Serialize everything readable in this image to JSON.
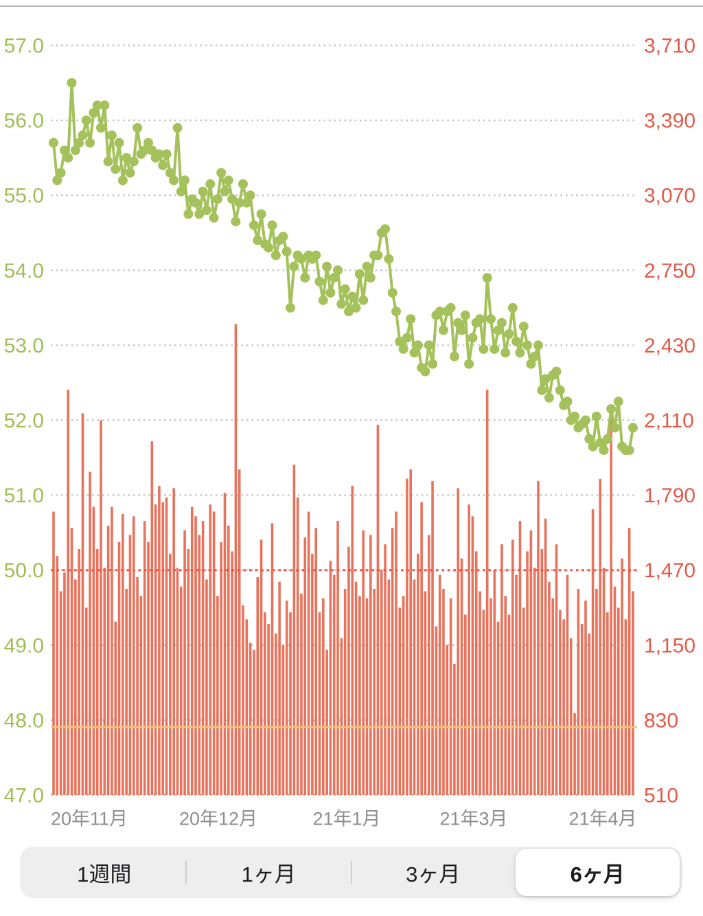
{
  "chart_data": {
    "type": "line+bar",
    "title": "",
    "left_axis": {
      "labels": [
        "57.0",
        "56.0",
        "55.0",
        "54.0",
        "53.0",
        "52.0",
        "51.0",
        "50.0",
        "49.0",
        "48.0",
        "47.0"
      ],
      "min": 47.0,
      "max": 57.0,
      "color": "#a1be56"
    },
    "right_axis": {
      "labels": [
        "3,710",
        "3,390",
        "3,070",
        "2,750",
        "2,430",
        "2,110",
        "1,790",
        "1,470",
        "1,150",
        "830",
        "510"
      ],
      "min": 510,
      "max": 3710,
      "color": "#e25a49"
    },
    "x_axis": {
      "labels": [
        "20年11月",
        "20年12月",
        "21年1月",
        "21年3月",
        "21年4月"
      ],
      "label_centers": [
        130,
        318,
        505,
        690,
        878
      ],
      "color": "#8e8e93"
    },
    "grid": {
      "on": true,
      "color": "#c3c3c5",
      "bottom_line_color": "#b6c87d"
    },
    "legend": "none",
    "reference_lines": [
      {
        "name": "calorie-goal-line",
        "value": 1470,
        "axis": "right",
        "style": "dotted",
        "color": "#f3523d"
      },
      {
        "name": "sub-goal-line",
        "value": 800,
        "axis": "right",
        "style": "solid",
        "color": "#f2c57c"
      }
    ],
    "series": [
      {
        "name": "weight",
        "type": "line",
        "unit": "kg",
        "axis": "left",
        "color": "#a4c15b",
        "values": [
          55.7,
          55.2,
          55.3,
          55.6,
          55.5,
          56.5,
          55.6,
          55.7,
          55.8,
          56.0,
          55.7,
          56.1,
          56.2,
          55.9,
          56.2,
          55.45,
          55.8,
          55.35,
          55.7,
          55.2,
          55.5,
          55.3,
          55.45,
          55.9,
          55.55,
          55.6,
          55.7,
          55.6,
          55.5,
          55.55,
          55.4,
          55.55,
          55.3,
          55.2,
          55.9,
          55.05,
          55.2,
          54.75,
          54.95,
          54.9,
          54.75,
          55.05,
          54.8,
          55.15,
          54.7,
          54.95,
          55.3,
          55.05,
          55.2,
          54.95,
          54.65,
          54.9,
          55.15,
          54.9,
          55.0,
          54.6,
          54.4,
          54.75,
          54.35,
          54.3,
          54.6,
          54.2,
          54.4,
          54.45,
          54.25,
          53.5,
          54.05,
          54.2,
          54.15,
          53.9,
          54.2,
          54.15,
          54.2,
          53.85,
          53.6,
          54.05,
          53.7,
          53.9,
          54.0,
          53.55,
          53.75,
          53.45,
          53.65,
          53.5,
          53.95,
          53.6,
          54.05,
          53.9,
          54.2,
          54.2,
          54.5,
          54.55,
          54.15,
          53.7,
          53.45,
          53.05,
          52.95,
          53.1,
          53.35,
          52.9,
          53.0,
          52.7,
          52.65,
          53.0,
          52.75,
          53.4,
          53.45,
          53.2,
          53.45,
          53.5,
          52.85,
          53.3,
          53.2,
          53.4,
          52.75,
          53.1,
          53.3,
          53.35,
          52.95,
          53.9,
          53.35,
          52.95,
          53.2,
          53.3,
          52.9,
          53.15,
          53.5,
          53.05,
          52.9,
          53.25,
          53.0,
          52.75,
          52.85,
          53.0,
          52.4,
          52.55,
          52.3,
          52.6,
          52.65,
          52.4,
          52.2,
          52.25,
          52.0,
          52.05,
          51.9,
          51.95,
          52.0,
          51.75,
          51.65,
          52.05,
          51.7,
          51.6,
          51.75,
          52.15,
          51.9,
          52.25,
          51.65,
          51.6,
          51.6,
          51.9
        ]
      },
      {
        "name": "calories",
        "type": "bar",
        "unit": "kcal",
        "axis": "right",
        "color": "#e8735d",
        "values": [
          1720,
          1530,
          1380,
          1460,
          2240,
          1650,
          1430,
          1560,
          2140,
          1310,
          1890,
          1740,
          1560,
          2110,
          1480,
          1660,
          1740,
          1250,
          1590,
          1710,
          1390,
          1620,
          1700,
          1440,
          1360,
          1680,
          1590,
          2020,
          1750,
          1830,
          1760,
          1780,
          1540,
          1820,
          1480,
          1400,
          1640,
          1560,
          1740,
          1700,
          1620,
          1680,
          1430,
          1750,
          1720,
          1360,
          1590,
          1800,
          1660,
          1550,
          2520,
          1900,
          1320,
          1260,
          1160,
          1130,
          1440,
          1600,
          1290,
          1240,
          1670,
          1200,
          1420,
          1150,
          1340,
          1290,
          1920,
          1780,
          1370,
          1610,
          1720,
          1540,
          1650,
          1290,
          1350,
          1130,
          1510,
          1450,
          1680,
          1180,
          1390,
          1570,
          1830,
          1420,
          1360,
          1640,
          1350,
          1620,
          1390,
          2090,
          1470,
          1580,
          1430,
          1650,
          1720,
          1310,
          1360,
          1860,
          1900,
          1430,
          1540,
          1760,
          1380,
          1620,
          1850,
          1230,
          1450,
          1390,
          1150,
          1350,
          1070,
          1820,
          1520,
          1280,
          1750,
          1700,
          1550,
          1380,
          1300,
          2240,
          1350,
          1470,
          1250,
          1580,
          1360,
          1280,
          1600,
          1450,
          1680,
          1310,
          1550,
          1640,
          1480,
          1850,
          1560,
          1690,
          1420,
          1350,
          1580,
          1300,
          1260,
          1450,
          1180,
          860,
          1390,
          1240,
          1340,
          1200,
          1730,
          1390,
          1860,
          1480,
          1290,
          2160,
          1400,
          1310,
          1520,
          1260,
          1650,
          1380
        ]
      }
    ]
  },
  "time_range": {
    "options": [
      "1週間",
      "1ヶ月",
      "3ヶ月",
      "6ヶ月"
    ],
    "selected": "6ヶ月",
    "selected_index": 3
  },
  "colors": {
    "background": "#ffffff",
    "top_divider": "#b4b4b6",
    "segmented_background": "#eeeeef",
    "segmented_selected_background": "#ffffff",
    "segmented_text": "#1c1c1e"
  }
}
